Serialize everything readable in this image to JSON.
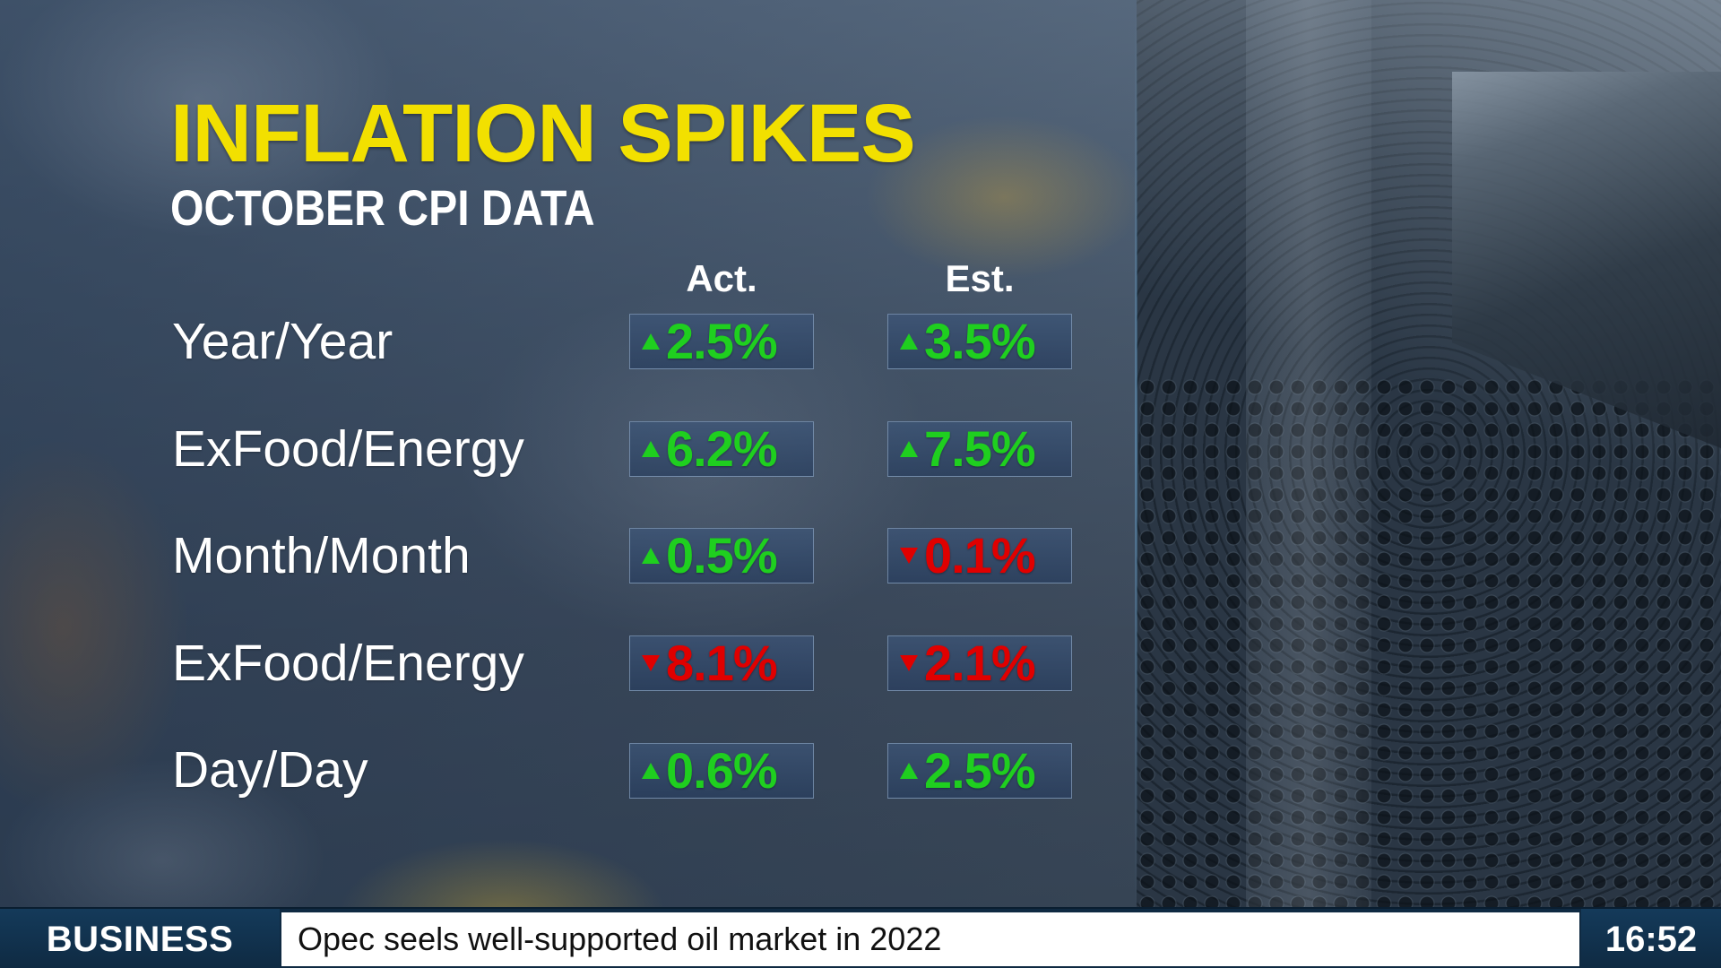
{
  "graphic": {
    "headline": "INFLATION SPIKES",
    "subheadline": "OCTOBER CPI DATA",
    "headline_color": "#f2e000"
  },
  "table": {
    "columns": [
      "Act.",
      "Est."
    ],
    "rows": [
      {
        "label": "Year/Year",
        "act": {
          "value": "2.5%",
          "direction": "up"
        },
        "est": {
          "value": "3.5%",
          "direction": "up"
        }
      },
      {
        "label": "ExFood/Energy",
        "act": {
          "value": "6.2%",
          "direction": "up"
        },
        "est": {
          "value": "7.5%",
          "direction": "up"
        }
      },
      {
        "label": "Month/Month",
        "act": {
          "value": "0.5%",
          "direction": "up"
        },
        "est": {
          "value": "0.1%",
          "direction": "down"
        }
      },
      {
        "label": "ExFood/Energy",
        "act": {
          "value": "8.1%",
          "direction": "down"
        },
        "est": {
          "value": "2.1%",
          "direction": "down"
        }
      },
      {
        "label": "Day/Day",
        "act": {
          "value": "0.6%",
          "direction": "up"
        },
        "est": {
          "value": "2.5%",
          "direction": "up"
        }
      }
    ],
    "up_color": "#1fcf1f",
    "down_color": "#e00000",
    "up_icon": "triangle-up-icon",
    "down_icon": "triangle-down-icon"
  },
  "ticker": {
    "section": "BUSINESS",
    "headline": "Opec seels well-supported oil market in 2022",
    "time": "16:52"
  }
}
